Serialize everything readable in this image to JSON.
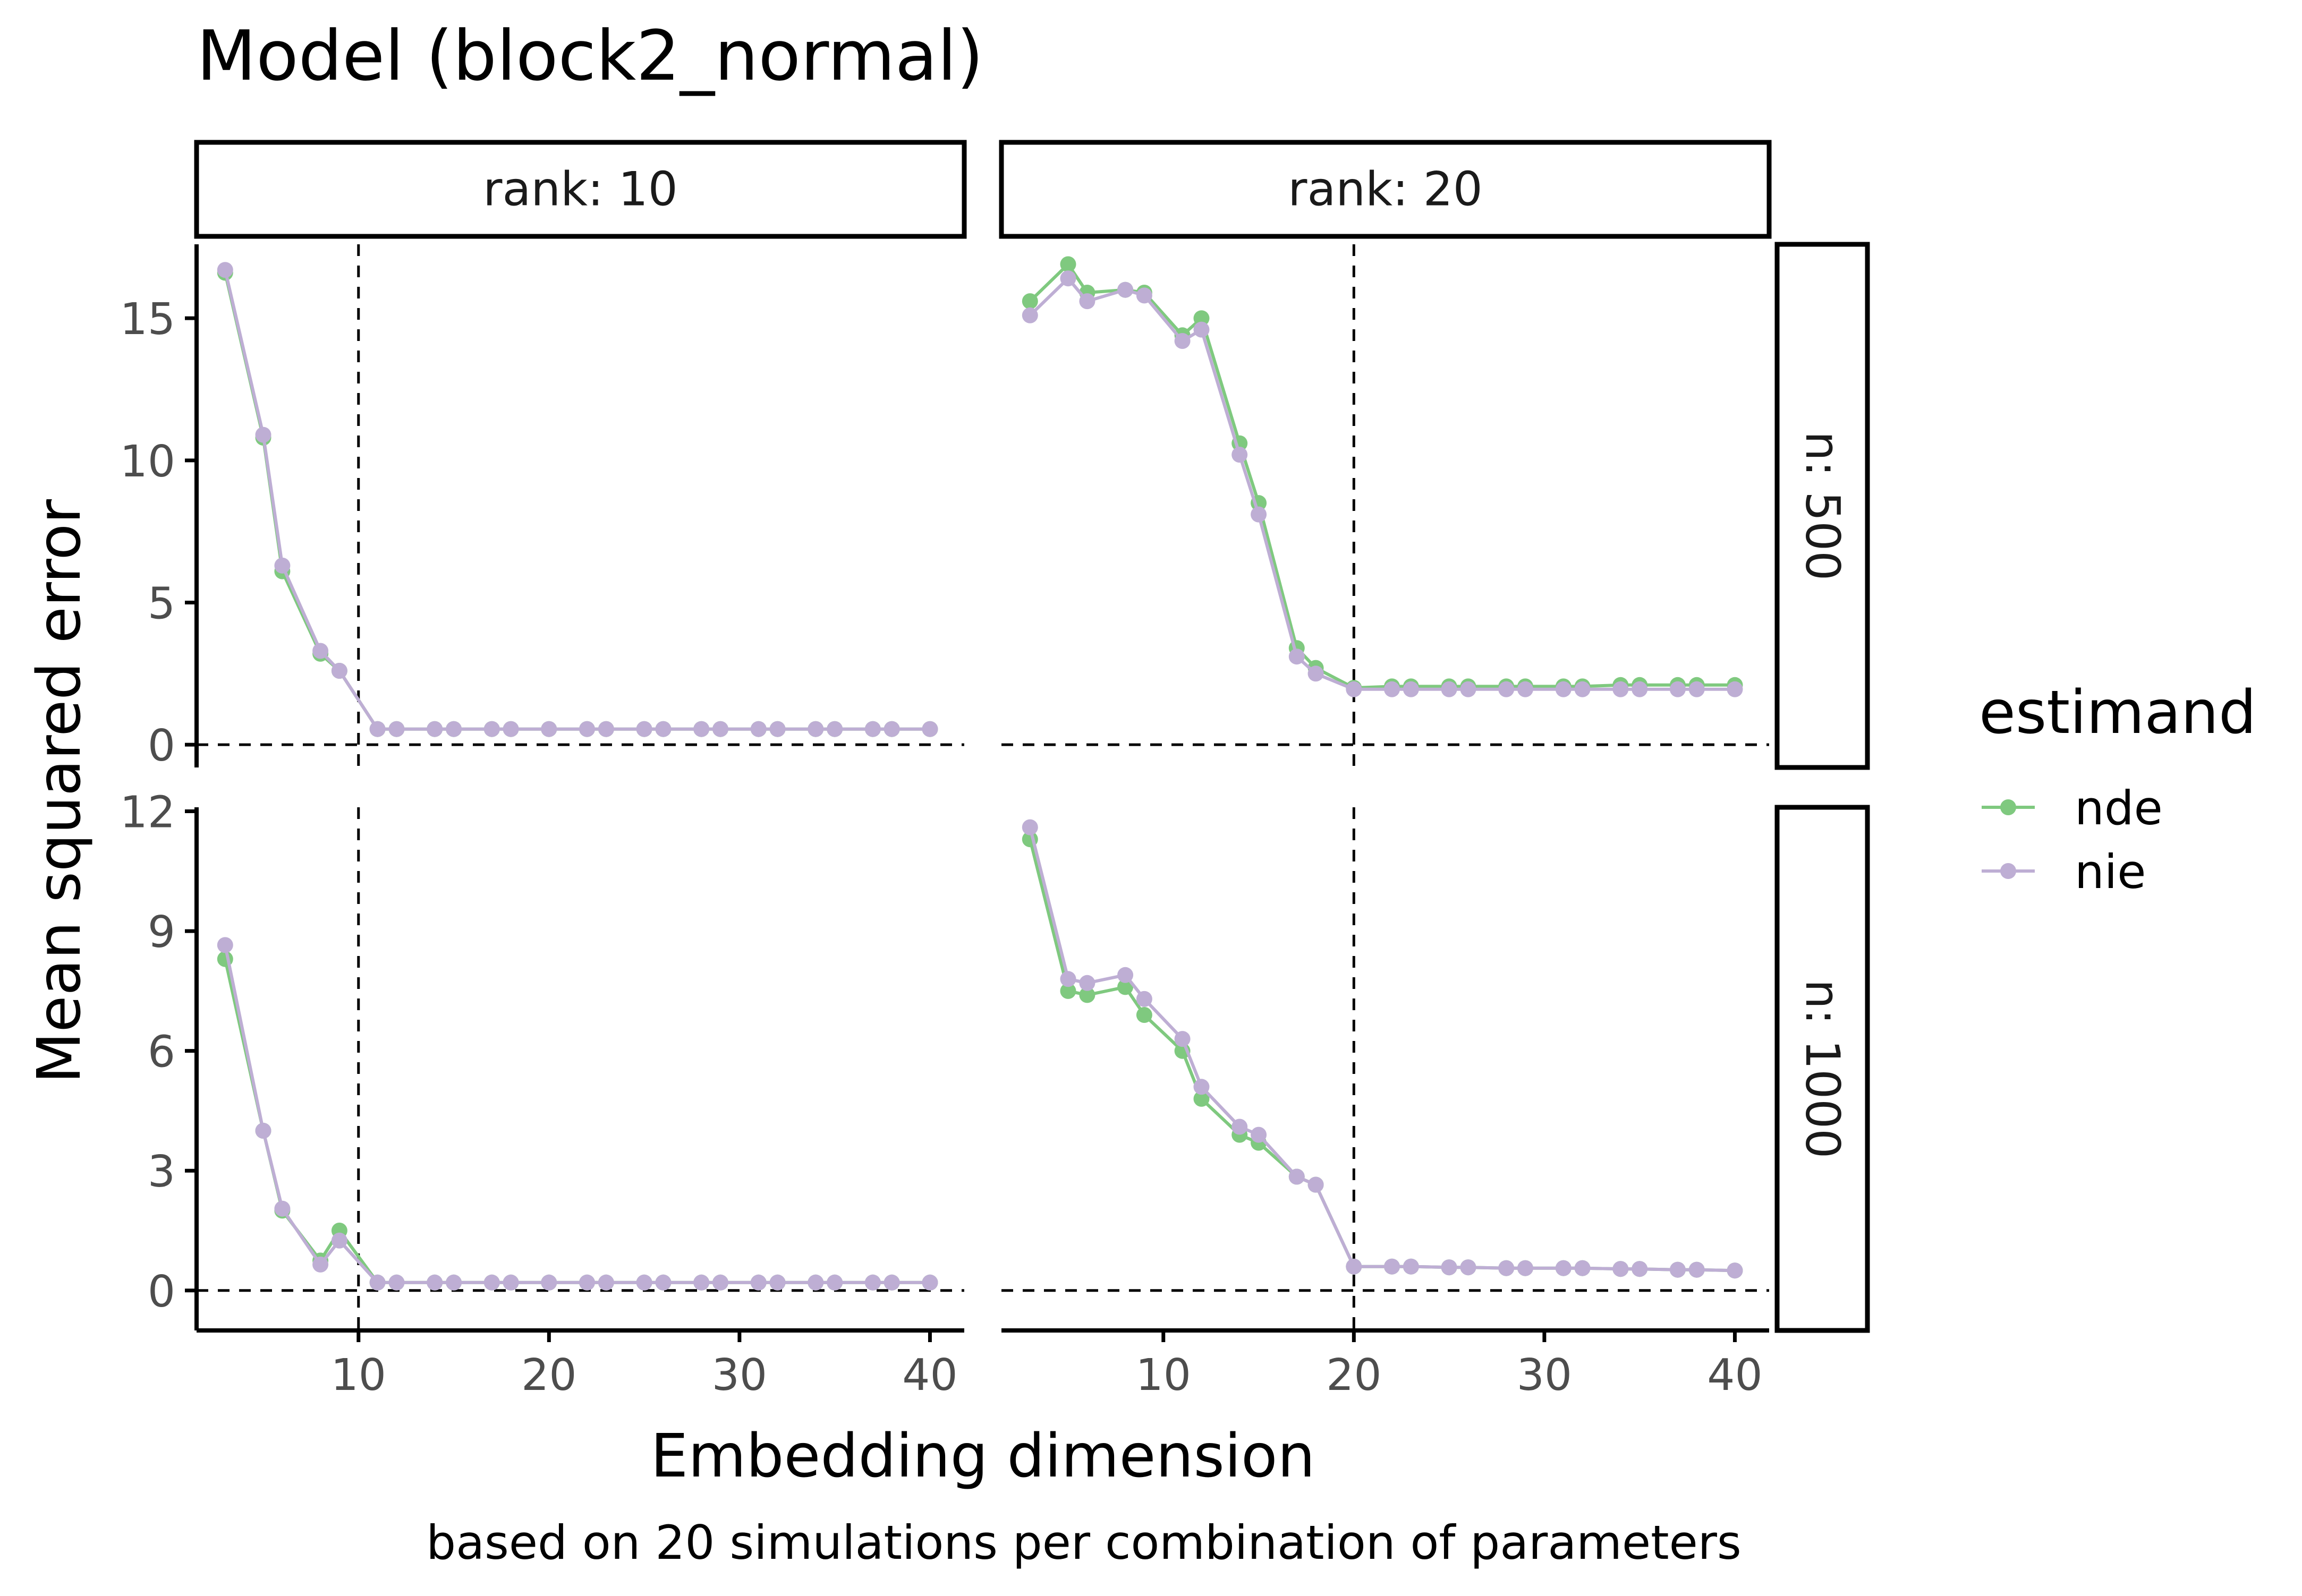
{
  "title": "Model (block2_normal)",
  "xlabel": "Embedding dimension",
  "ylabel": "Mean squared error",
  "caption": "based on 20 simulations per combination of parameters",
  "legend": {
    "title": "estimand",
    "position": "right",
    "entries": [
      {
        "label": "nde",
        "color": "#7fc97f"
      },
      {
        "label": "nie",
        "color": "#beaed4"
      }
    ]
  },
  "chart_data": {
    "type": "line",
    "markers": true,
    "grid": false,
    "x_ticks": [
      10,
      20,
      30,
      40
    ],
    "x_range": [
      1.5,
      41.8
    ],
    "column_strips": [
      "rank: 10",
      "rank: 20"
    ],
    "row_strips": [
      "n: 500",
      "n: 1000"
    ],
    "row_scales": [
      {
        "ylim": [
          -0.8,
          17.6
        ],
        "y_ticks": [
          0,
          5,
          10,
          15
        ]
      },
      {
        "ylim": [
          -1.0,
          12.1
        ],
        "y_ticks": [
          0,
          3,
          6,
          9,
          12
        ]
      }
    ],
    "reference_lines": {
      "horizontal_y": 0,
      "vertical_x_by_column": [
        10,
        20
      ]
    },
    "panels": [
      {
        "column": "rank: 10",
        "row": "n: 500",
        "series": [
          {
            "name": "nde",
            "x": [
              3,
              5,
              6,
              8,
              9,
              11,
              12,
              14,
              15,
              17,
              18,
              20,
              22,
              23,
              25,
              26,
              28,
              29,
              31,
              32,
              34,
              35,
              37,
              38,
              40
            ],
            "values": [
              16.6,
              10.8,
              6.1,
              3.2,
              2.6,
              0.55,
              0.55,
              0.55,
              0.55,
              0.55,
              0.55,
              0.55,
              0.55,
              0.55,
              0.55,
              0.55,
              0.55,
              0.55,
              0.55,
              0.55,
              0.55,
              0.55,
              0.55,
              0.55,
              0.55
            ]
          },
          {
            "name": "nie",
            "x": [
              3,
              5,
              6,
              8,
              9,
              11,
              12,
              14,
              15,
              17,
              18,
              20,
              22,
              23,
              25,
              26,
              28,
              29,
              31,
              32,
              34,
              35,
              37,
              38,
              40
            ],
            "values": [
              16.7,
              10.9,
              6.3,
              3.3,
              2.6,
              0.55,
              0.55,
              0.55,
              0.55,
              0.55,
              0.55,
              0.55,
              0.55,
              0.55,
              0.55,
              0.55,
              0.55,
              0.55,
              0.55,
              0.55,
              0.55,
              0.55,
              0.55,
              0.55,
              0.55
            ]
          }
        ]
      },
      {
        "column": "rank: 20",
        "row": "n: 500",
        "series": [
          {
            "name": "nde",
            "x": [
              3,
              5,
              6,
              8,
              9,
              11,
              12,
              14,
              15,
              17,
              18,
              20,
              22,
              23,
              25,
              26,
              28,
              29,
              31,
              32,
              34,
              35,
              37,
              38,
              40
            ],
            "values": [
              15.6,
              16.9,
              15.9,
              16.0,
              15.9,
              14.4,
              15.0,
              10.6,
              8.5,
              3.4,
              2.7,
              2.0,
              2.05,
              2.05,
              2.05,
              2.05,
              2.05,
              2.05,
              2.05,
              2.05,
              2.1,
              2.1,
              2.1,
              2.1,
              2.1
            ]
          },
          {
            "name": "nie",
            "x": [
              3,
              5,
              6,
              8,
              9,
              11,
              12,
              14,
              15,
              17,
              18,
              20,
              22,
              23,
              25,
              26,
              28,
              29,
              31,
              32,
              34,
              35,
              37,
              38,
              40
            ],
            "values": [
              15.1,
              16.4,
              15.6,
              16.0,
              15.8,
              14.2,
              14.6,
              10.2,
              8.1,
              3.1,
              2.5,
              1.95,
              1.95,
              1.95,
              1.95,
              1.95,
              1.95,
              1.95,
              1.95,
              1.95,
              1.95,
              1.95,
              1.95,
              1.95,
              1.95
            ]
          }
        ]
      },
      {
        "column": "rank: 10",
        "row": "n: 1000",
        "series": [
          {
            "name": "nde",
            "x": [
              3,
              5,
              6,
              8,
              9,
              11,
              12,
              14,
              15,
              17,
              18,
              20,
              22,
              23,
              25,
              26,
              28,
              29,
              31,
              32,
              34,
              35,
              37,
              38,
              40
            ],
            "values": [
              8.3,
              4.0,
              2.0,
              0.75,
              1.5,
              0.2,
              0.2,
              0.2,
              0.2,
              0.2,
              0.2,
              0.2,
              0.2,
              0.2,
              0.2,
              0.2,
              0.2,
              0.2,
              0.2,
              0.2,
              0.2,
              0.2,
              0.2,
              0.2,
              0.2
            ]
          },
          {
            "name": "nie",
            "x": [
              3,
              5,
              6,
              8,
              9,
              11,
              12,
              14,
              15,
              17,
              18,
              20,
              22,
              23,
              25,
              26,
              28,
              29,
              31,
              32,
              34,
              35,
              37,
              38,
              40
            ],
            "values": [
              8.65,
              4.0,
              2.05,
              0.65,
              1.25,
              0.2,
              0.2,
              0.2,
              0.2,
              0.2,
              0.2,
              0.2,
              0.2,
              0.2,
              0.2,
              0.2,
              0.2,
              0.2,
              0.2,
              0.2,
              0.2,
              0.2,
              0.2,
              0.2,
              0.2
            ]
          }
        ]
      },
      {
        "column": "rank: 20",
        "row": "n: 1000",
        "series": [
          {
            "name": "nde",
            "x": [
              3,
              5,
              6,
              8,
              9,
              11,
              12,
              14,
              15,
              17,
              18,
              20,
              22,
              23,
              25,
              26,
              28,
              29,
              31,
              32,
              34,
              35,
              37,
              38,
              40
            ],
            "values": [
              11.3,
              7.5,
              7.4,
              7.6,
              6.9,
              6.0,
              4.8,
              3.9,
              3.7,
              2.85,
              2.65,
              0.6,
              0.6,
              0.6,
              0.58,
              0.58,
              0.56,
              0.56,
              0.56,
              0.56,
              0.54,
              0.54,
              0.52,
              0.52,
              0.5
            ]
          },
          {
            "name": "nie",
            "x": [
              3,
              5,
              6,
              8,
              9,
              11,
              12,
              14,
              15,
              17,
              18,
              20,
              22,
              23,
              25,
              26,
              28,
              29,
              31,
              32,
              34,
              35,
              37,
              38,
              40
            ],
            "values": [
              11.6,
              7.8,
              7.7,
              7.9,
              7.3,
              6.3,
              5.1,
              4.1,
              3.9,
              2.85,
              2.65,
              0.6,
              0.6,
              0.6,
              0.58,
              0.58,
              0.56,
              0.56,
              0.56,
              0.56,
              0.54,
              0.54,
              0.52,
              0.52,
              0.5
            ]
          }
        ]
      }
    ]
  }
}
